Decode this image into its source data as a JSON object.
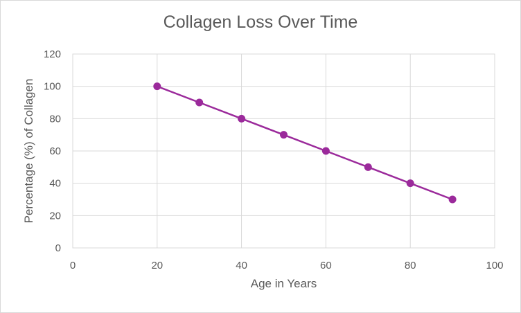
{
  "chart_data": {
    "type": "scatter",
    "title": "Collagen Loss Over Time",
    "xlabel": "Age in Years",
    "ylabel": "Percentage (%) of Collagen",
    "xlim": [
      0,
      100
    ],
    "ylim": [
      0,
      120
    ],
    "xticks": [
      "0",
      "20",
      "40",
      "60",
      "80",
      "100"
    ],
    "yticks": [
      "0",
      "20",
      "40",
      "60",
      "80",
      "100",
      "120"
    ],
    "grid": true,
    "legend": "none",
    "series": [
      {
        "x": [
          20,
          30,
          40,
          50,
          60,
          70,
          80,
          90
        ],
        "y": [
          100,
          90,
          80,
          70,
          60,
          50,
          40,
          30
        ],
        "color": "#9b2a9b",
        "markers": true,
        "line": true
      }
    ]
  }
}
